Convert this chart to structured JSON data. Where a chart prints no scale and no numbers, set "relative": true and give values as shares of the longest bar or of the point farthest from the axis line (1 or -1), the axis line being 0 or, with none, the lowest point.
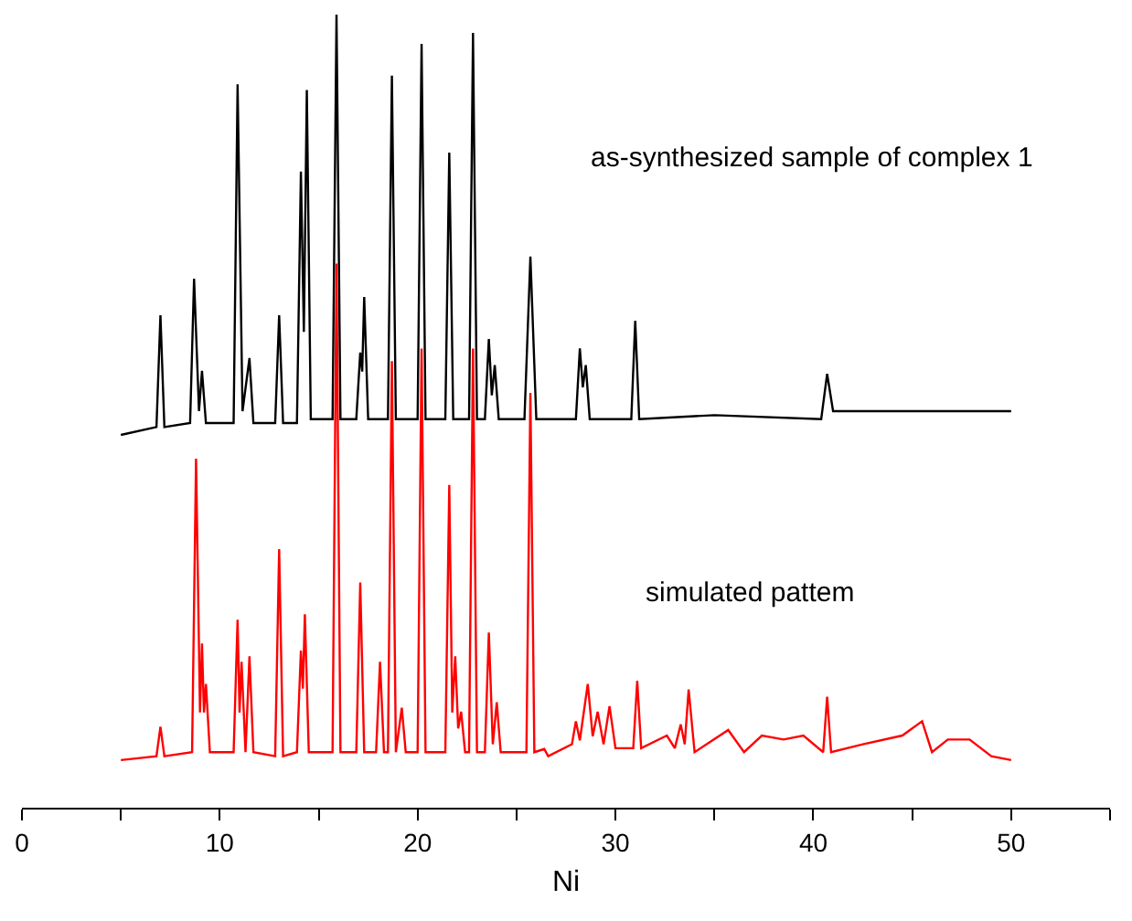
{
  "chart_data": {
    "type": "line",
    "relative": true,
    "xlabel": "Ni",
    "xlim": [
      0,
      55
    ],
    "xticks": [
      0,
      {
        "value": 5,
        "label": null
      },
      10,
      {
        "value": 15,
        "label": null
      },
      20,
      {
        "value": 25,
        "label": null
      },
      30,
      {
        "value": 35,
        "label": null
      },
      40,
      {
        "value": 45,
        "label": null
      },
      50,
      {
        "value": 55,
        "label": null
      }
    ],
    "grid": false,
    "marker": "none",
    "line_style": "solid",
    "annotations": [
      "as-synthesized sample of complex 1",
      "simulated pattem"
    ],
    "series": [
      {
        "color": "#000000",
        "x": [
          5.0,
          6.8,
          7.0,
          7.2,
          8.5,
          8.7,
          8.95,
          9.1,
          9.3,
          10.7,
          10.9,
          11.15,
          11.5,
          11.7,
          12.8,
          13.0,
          13.2,
          13.9,
          14.1,
          14.25,
          14.4,
          14.6,
          15.7,
          15.9,
          16.1,
          16.9,
          17.1,
          17.2,
          17.3,
          17.5,
          18.5,
          18.7,
          18.9,
          20.0,
          20.2,
          20.4,
          21.4,
          21.6,
          21.8,
          22.6,
          22.8,
          23.0,
          23.4,
          23.6,
          23.75,
          23.9,
          24.1,
          25.4,
          25.7,
          26.0,
          28.0,
          28.2,
          28.35,
          28.5,
          28.7,
          30.8,
          31.0,
          31.2,
          35.0,
          40.4,
          40.7,
          41.0,
          45.0,
          50.0
        ],
        "values": [
          0.47,
          0.48,
          0.621,
          0.48,
          0.485,
          0.667,
          0.5,
          0.551,
          0.485,
          0.485,
          0.912,
          0.5,
          0.567,
          0.485,
          0.485,
          0.621,
          0.485,
          0.485,
          0.802,
          0.6,
          0.905,
          0.49,
          0.49,
          1,
          0.49,
          0.49,
          0.574,
          0.55,
          0.644,
          0.49,
          0.49,
          0.923,
          0.49,
          0.49,
          0.963,
          0.49,
          0.49,
          0.826,
          0.49,
          0.49,
          0.977,
          0.49,
          0.49,
          0.591,
          0.52,
          0.558,
          0.49,
          0.49,
          0.695,
          0.49,
          0.49,
          0.579,
          0.53,
          0.558,
          0.49,
          0.49,
          0.614,
          0.49,
          0.495,
          0.49,
          0.547,
          0.5,
          0.5,
          0.5
        ]
      },
      {
        "color": "#ff0000",
        "x": [
          5.0,
          6.8,
          7.0,
          7.2,
          8.6,
          8.8,
          9.0,
          9.1,
          9.2,
          9.3,
          9.5,
          10.7,
          10.9,
          11.0,
          11.1,
          11.3,
          11.5,
          11.7,
          12.8,
          13.0,
          13.2,
          13.9,
          14.1,
          14.2,
          14.3,
          14.5,
          15.7,
          15.9,
          16.1,
          16.9,
          17.1,
          17.3,
          17.9,
          18.1,
          18.3,
          18.5,
          18.7,
          18.9,
          19.2,
          19.4,
          20.0,
          20.2,
          20.4,
          21.4,
          21.6,
          21.75,
          21.9,
          22.05,
          22.2,
          22.4,
          22.6,
          22.8,
          23.0,
          23.4,
          23.6,
          23.8,
          24.0,
          24.2,
          25.5,
          25.7,
          25.9,
          26.4,
          26.6,
          27.8,
          28.0,
          28.2,
          28.6,
          28.85,
          29.1,
          29.4,
          29.7,
          30.0,
          30.9,
          31.1,
          31.3,
          32.6,
          33.0,
          33.3,
          33.5,
          33.7,
          34.0,
          35.7,
          36.5,
          37.4,
          38.5,
          39.5,
          40.5,
          40.7,
          40.9,
          42.5,
          44.5,
          45.5,
          46.0,
          46.8,
          47.9,
          49.0,
          50.0
        ],
        "values": [
          0.06,
          0.065,
          0.102,
          0.065,
          0.07,
          0.44,
          0.12,
          0.207,
          0.12,
          0.156,
          0.07,
          0.07,
          0.237,
          0.12,
          0.184,
          0.07,
          0.191,
          0.07,
          0.065,
          0.326,
          0.065,
          0.07,
          0.198,
          0.15,
          0.244,
          0.07,
          0.07,
          0.686,
          0.07,
          0.07,
          0.284,
          0.07,
          0.07,
          0.184,
          0.07,
          0.07,
          0.563,
          0.07,
          0.126,
          0.07,
          0.07,
          0.579,
          0.07,
          0.07,
          0.407,
          0.12,
          0.191,
          0.1,
          0.121,
          0.07,
          0.07,
          0.579,
          0.07,
          0.07,
          0.221,
          0.08,
          0.133,
          0.07,
          0.07,
          0.523,
          0.07,
          0.074,
          0.065,
          0.08,
          0.109,
          0.085,
          0.156,
          0.09,
          0.121,
          0.08,
          0.128,
          0.075,
          0.075,
          0.16,
          0.075,
          0.091,
          0.075,
          0.105,
          0.08,
          0.149,
          0.07,
          0.098,
          0.07,
          0.091,
          0.086,
          0.091,
          0.07,
          0.14,
          0.07,
          0.08,
          0.091,
          0.109,
          0.07,
          0.086,
          0.086,
          0.065,
          0.06
        ]
      }
    ]
  }
}
